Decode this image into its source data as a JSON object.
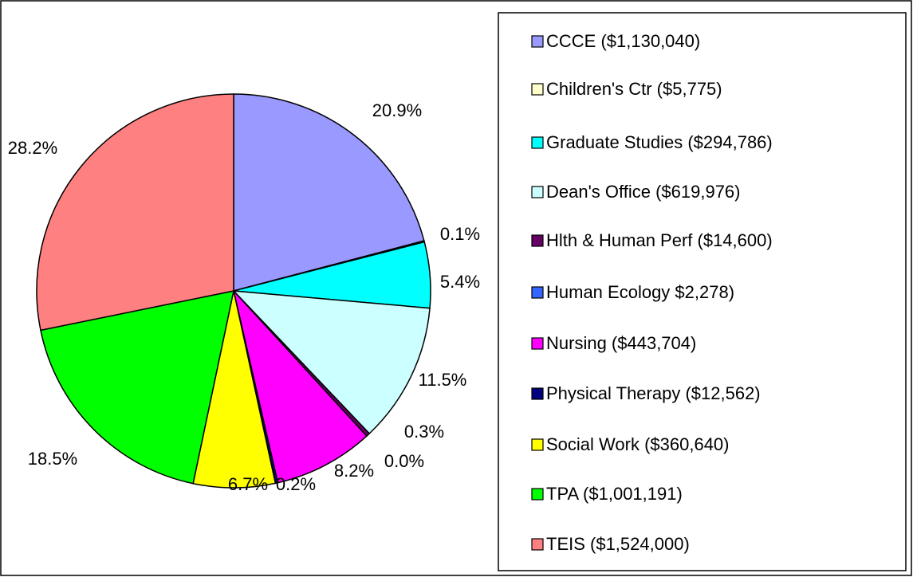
{
  "chart_data": {
    "type": "pie",
    "categories": [
      "CCCE ($1,130,040)",
      "Children's Ctr ($5,775)",
      "Graduate Studies ($294,786)",
      "Dean's Office ($619,976)",
      "Hlth & Human Perf ($14,600)",
      "Human Ecology $2,278)",
      "Nursing ($443,704)",
      "Physical Therapy ($12,562)",
      "Social Work ($360,640)",
      "TPA ($1,001,191)",
      "TEIS ($1,524,000)"
    ],
    "values": [
      20.9,
      0.1,
      5.4,
      11.5,
      0.3,
      0.0,
      8.2,
      0.2,
      6.7,
      18.5,
      28.2
    ],
    "value_labels": [
      "20.9%",
      "0.1%",
      "5.4%",
      "11.5%",
      "0.3%",
      "0.0%",
      "8.2%",
      "0.2%",
      "6.7%",
      "18.5%",
      "28.2%"
    ],
    "colors": [
      "#9999ff",
      "#ffffcc",
      "#00ffff",
      "#ccffff",
      "#660066",
      "#3366ff",
      "#ff00ff",
      "#000080",
      "#ffff00",
      "#00ff00",
      "#ff8080"
    ],
    "legend": "right"
  }
}
